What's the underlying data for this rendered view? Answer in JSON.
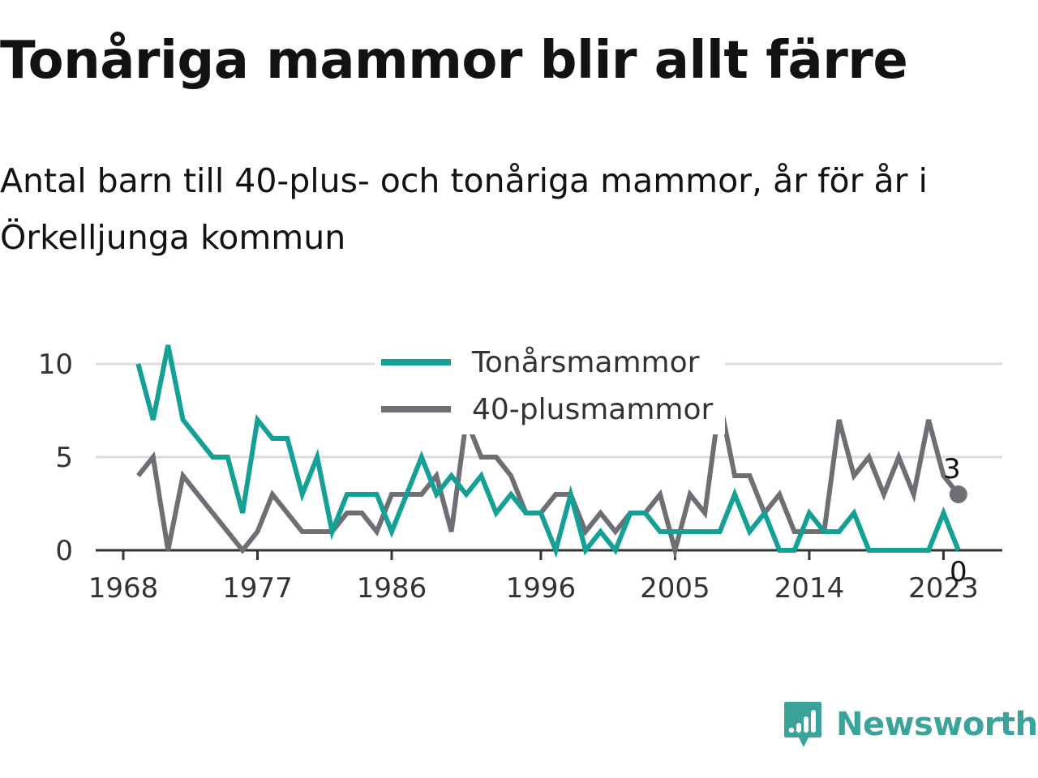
{
  "title": "Tonåriga mammor blir allt färre",
  "subtitle": "Antal barn till 40-plus- och tonåriga mammor, år för år i Örkelljunga kommun",
  "brand": "Newsworthy",
  "chart_data": {
    "type": "line",
    "title": "Tonåriga mammor blir allt färre",
    "subtitle": "Antal barn till 40-plus- och tonåriga mammor, år för år i Örkelljunga kommun",
    "xlabel": "",
    "ylabel": "",
    "x": [
      1969,
      1970,
      1971,
      1972,
      1973,
      1974,
      1975,
      1976,
      1977,
      1978,
      1979,
      1980,
      1981,
      1982,
      1983,
      1984,
      1985,
      1986,
      1987,
      1988,
      1989,
      1990,
      1991,
      1992,
      1993,
      1994,
      1995,
      1996,
      1997,
      1998,
      1999,
      2000,
      2001,
      2002,
      2003,
      2004,
      2005,
      2006,
      2007,
      2008,
      2009,
      2010,
      2011,
      2012,
      2013,
      2014,
      2015,
      2016,
      2017,
      2018,
      2019,
      2020,
      2021,
      2022,
      2023,
      2024
    ],
    "xticks": [
      1968,
      1977,
      1986,
      1996,
      2005,
      2014,
      2023
    ],
    "yticks": [
      0,
      5,
      10
    ],
    "ylim": [
      0,
      11
    ],
    "xlim": [
      1967,
      2027
    ],
    "grid": true,
    "legend_position": "top-center",
    "series": [
      {
        "name": "Tonårsmammor",
        "color": "#14a095",
        "values": [
          10,
          7,
          11,
          7,
          6,
          5,
          5,
          2,
          7,
          6,
          6,
          3,
          5,
          1,
          3,
          3,
          3,
          1,
          3,
          5,
          3,
          4,
          3,
          4,
          2,
          3,
          2,
          2,
          0,
          3,
          0,
          1,
          0,
          2,
          2,
          1,
          1,
          1,
          1,
          1,
          3,
          1,
          2,
          0,
          0,
          2,
          1,
          1,
          2,
          0,
          0,
          0,
          0,
          0,
          2,
          0
        ],
        "last_label": "0"
      },
      {
        "name": "40-plusmammor",
        "color": "#6f6e74",
        "values": [
          4,
          5,
          0,
          4,
          3,
          2,
          1,
          0,
          1,
          3,
          2,
          1,
          1,
          1,
          2,
          2,
          1,
          3,
          3,
          3,
          4,
          1,
          7,
          5,
          5,
          4,
          2,
          2,
          3,
          3,
          1,
          2,
          1,
          2,
          2,
          3,
          0,
          3,
          2,
          8,
          4,
          4,
          2,
          3,
          1,
          1,
          1,
          7,
          4,
          5,
          3,
          5,
          3,
          7,
          4,
          3
        ],
        "last_label": "3"
      }
    ]
  }
}
